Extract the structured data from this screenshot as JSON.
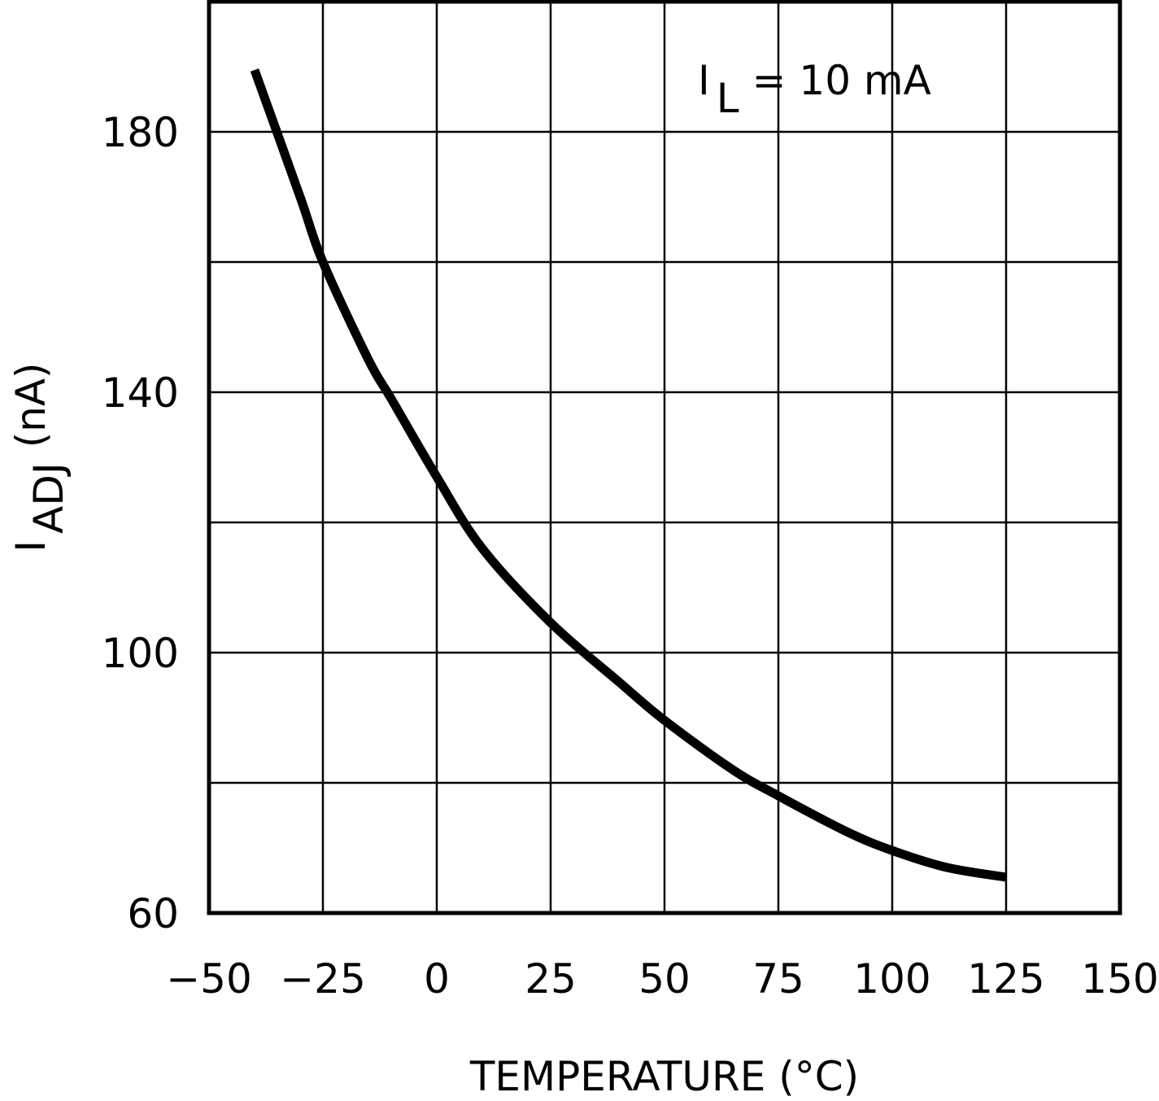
{
  "chart_data": {
    "type": "line",
    "xlabel": "TEMPERATURE (°C)",
    "ylabel_main": "I",
    "ylabel_sub": "ADJ",
    "ylabel_unit": "(nA)",
    "annotation": {
      "main": "I",
      "sub": "L",
      "rest": "= 10 mA"
    },
    "xlim": [
      -50,
      150
    ],
    "ylim": [
      60,
      200
    ],
    "grid": true,
    "x_ticks": [
      -50,
      -25,
      0,
      25,
      50,
      75,
      100,
      125,
      150
    ],
    "x_tick_labels": [
      "−50",
      "−25",
      "0",
      "25",
      "50",
      "75",
      "100",
      "125",
      "150"
    ],
    "y_ticks": [
      60,
      100,
      140,
      180
    ],
    "y_tick_labels": [
      "60",
      "100",
      "140",
      "180"
    ],
    "y_grid": [
      60,
      80,
      100,
      120,
      140,
      160,
      180,
      200
    ],
    "series": [
      {
        "x": [
          -40,
          -30,
          -25,
          -15,
          -10,
          0,
          10,
          25,
          40,
          50,
          65,
          75,
          90,
          100,
          112,
          125
        ],
        "y": [
          189.5,
          170,
          160,
          145,
          139,
          127,
          116,
          104.6,
          95.5,
          89.6,
          82,
          78,
          72.5,
          69.6,
          67,
          65.5
        ],
        "color": "#000000"
      }
    ]
  }
}
